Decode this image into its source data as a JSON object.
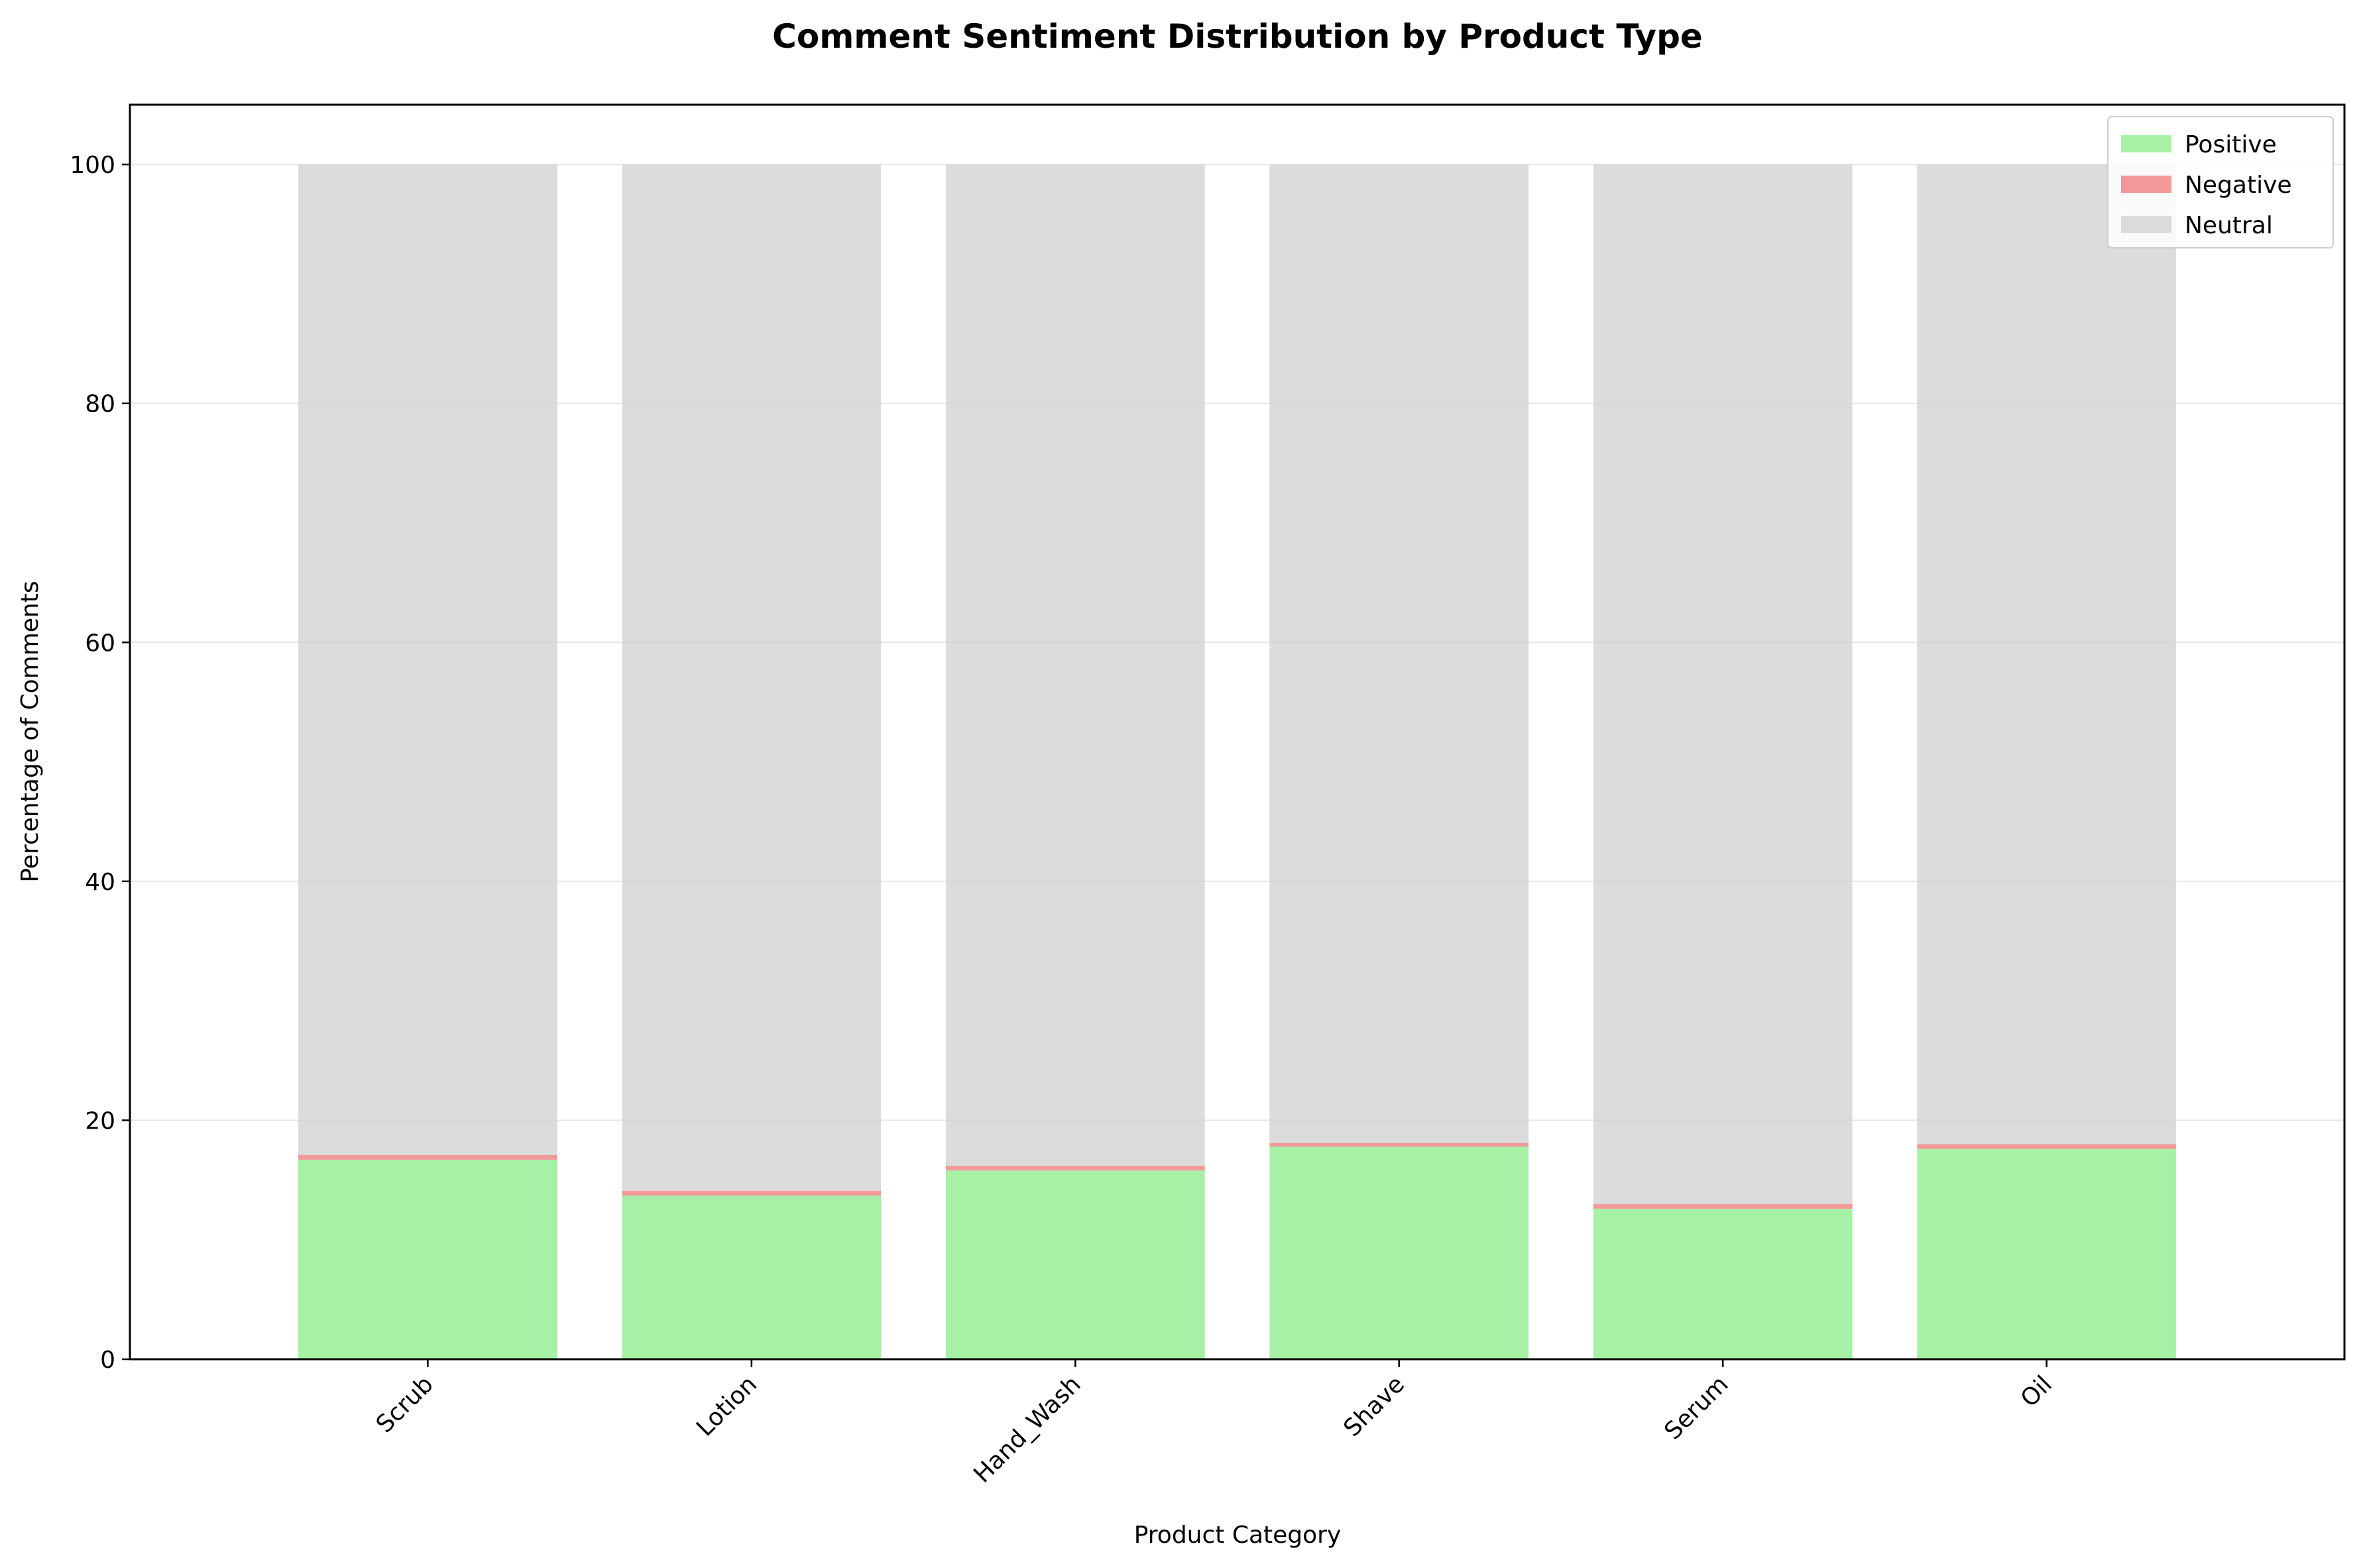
{
  "chart_data": {
    "type": "bar",
    "stacked": true,
    "title": "Comment Sentiment Distribution by Product Type",
    "xlabel": "Product Category",
    "ylabel": "Percentage of Comments",
    "categories": [
      "Scrub",
      "Lotion",
      "Hand_Wash",
      "Shave",
      "Serum",
      "Oil"
    ],
    "series": [
      {
        "name": "Positive",
        "color": "#90ee90",
        "values": [
          16.7,
          13.7,
          15.8,
          17.8,
          12.6,
          17.6
        ]
      },
      {
        "name": "Negative",
        "color": "#f08080",
        "values": [
          0.4,
          0.4,
          0.4,
          0.3,
          0.4,
          0.4
        ]
      },
      {
        "name": "Neutral",
        "color": "#d3d3d3",
        "values": [
          82.9,
          85.9,
          83.8,
          81.9,
          87.0,
          82.0
        ]
      }
    ],
    "ylim": [
      0,
      105
    ],
    "yticks": [
      0,
      20,
      40,
      60,
      80,
      100
    ],
    "grid": true,
    "legend_position": "top-right"
  }
}
